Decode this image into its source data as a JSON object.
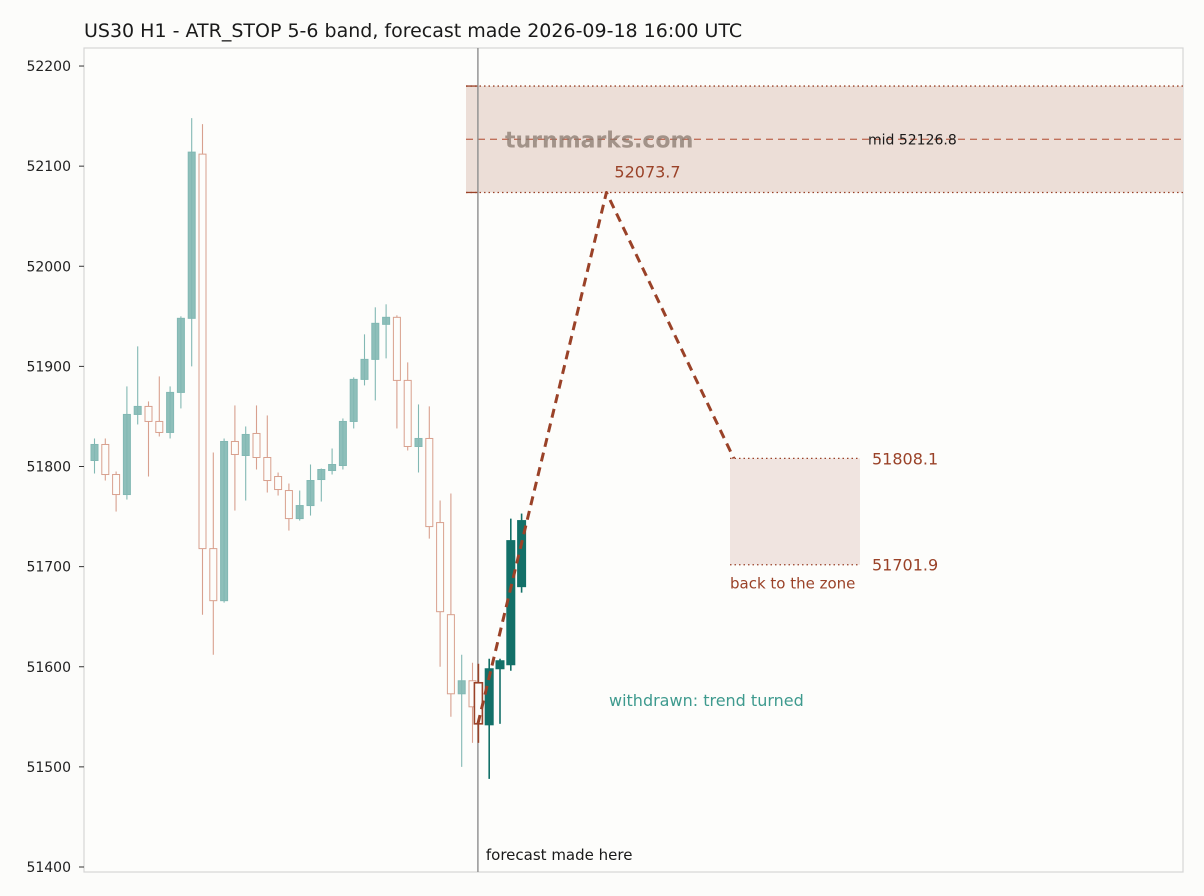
{
  "chart_data": {
    "type": "candlestick",
    "title": "US30 H1 - ATR_STOP 5-6 band, forecast made 2026-09-18 16:00 UTC",
    "xlabel": "",
    "ylabel": "",
    "ylim": [
      51395,
      52218
    ],
    "yticks": [
      "51400",
      "51500",
      "51600",
      "51700",
      "51800",
      "51900",
      "52000",
      "52100",
      "52200"
    ],
    "grid": false,
    "watermark": "turnmarks.com",
    "colors": {
      "up_history": "#82b8b3",
      "down_history": "#d8a08e",
      "up_forecast": "#137068",
      "down_forecast": "#9a4228",
      "band_fill": "#ecded7",
      "zone_fill": "#f0e4e0",
      "forecast_line": "#9a4228",
      "note": "#3e9a8e"
    },
    "history_candles": [
      {
        "o": 51806,
        "h": 51828,
        "l": 51793,
        "c": 51822
      },
      {
        "o": 51822,
        "h": 51828,
        "l": 51786,
        "c": 51792
      },
      {
        "o": 51792,
        "h": 51795,
        "l": 51755,
        "c": 51772
      },
      {
        "o": 51772,
        "h": 51880,
        "l": 51767,
        "c": 51852
      },
      {
        "o": 51852,
        "h": 51920,
        "l": 51842,
        "c": 51860
      },
      {
        "o": 51860,
        "h": 51865,
        "l": 51790,
        "c": 51845
      },
      {
        "o": 51845,
        "h": 51890,
        "l": 51830,
        "c": 51834
      },
      {
        "o": 51834,
        "h": 51880,
        "l": 51828,
        "c": 51874
      },
      {
        "o": 51874,
        "h": 51950,
        "l": 51858,
        "c": 51948
      },
      {
        "o": 51948,
        "h": 52148,
        "l": 51900,
        "c": 52114
      },
      {
        "o": 52112,
        "h": 52142,
        "l": 51652,
        "c": 51718
      },
      {
        "o": 51718,
        "h": 51814,
        "l": 51612,
        "c": 51666
      },
      {
        "o": 51666,
        "h": 51828,
        "l": 51664,
        "c": 51825
      },
      {
        "o": 51825,
        "h": 51861,
        "l": 51756,
        "c": 51812
      },
      {
        "o": 51811,
        "h": 51840,
        "l": 51766,
        "c": 51832
      },
      {
        "o": 51833,
        "h": 51861,
        "l": 51797,
        "c": 51809
      },
      {
        "o": 51809,
        "h": 51851,
        "l": 51774,
        "c": 51786
      },
      {
        "o": 51790,
        "h": 51794,
        "l": 51771,
        "c": 51777
      },
      {
        "o": 51776,
        "h": 51783,
        "l": 51736,
        "c": 51748
      },
      {
        "o": 51748,
        "h": 51776,
        "l": 51746,
        "c": 51761
      },
      {
        "o": 51761,
        "h": 51802,
        "l": 51751,
        "c": 51786
      },
      {
        "o": 51787,
        "h": 51798,
        "l": 51765,
        "c": 51797
      },
      {
        "o": 51796,
        "h": 51818,
        "l": 51792,
        "c": 51802
      },
      {
        "o": 51801,
        "h": 51848,
        "l": 51797,
        "c": 51845
      },
      {
        "o": 51845,
        "h": 51889,
        "l": 51838,
        "c": 51887
      },
      {
        "o": 51887,
        "h": 51932,
        "l": 51881,
        "c": 51907
      },
      {
        "o": 51907,
        "h": 51959,
        "l": 51866,
        "c": 51943
      },
      {
        "o": 51942,
        "h": 51962,
        "l": 51908,
        "c": 51949
      },
      {
        "o": 51949,
        "h": 51951,
        "l": 51838,
        "c": 51886
      },
      {
        "o": 51886,
        "h": 51904,
        "l": 51816,
        "c": 51820
      },
      {
        "o": 51820,
        "h": 51862,
        "l": 51794,
        "c": 51828
      },
      {
        "o": 51828,
        "h": 51860,
        "l": 51728,
        "c": 51740
      },
      {
        "o": 51744,
        "h": 51766,
        "l": 51600,
        "c": 51655
      },
      {
        "o": 51652,
        "h": 51773,
        "l": 51550,
        "c": 51573
      },
      {
        "o": 51573,
        "h": 51612,
        "l": 51500,
        "c": 51586
      },
      {
        "o": 51586,
        "h": 51604,
        "l": 51524,
        "c": 51560
      }
    ],
    "forecast_time_index": 35.5,
    "forecast_candles": [
      {
        "o": 51584,
        "h": 51603,
        "l": 51524,
        "c": 51543
      },
      {
        "o": 51542,
        "h": 51608,
        "l": 51488,
        "c": 51598
      },
      {
        "o": 51598,
        "h": 51608,
        "l": 51543,
        "c": 51606
      },
      {
        "o": 51602,
        "h": 51748,
        "l": 51596,
        "c": 51726
      },
      {
        "o": 51680,
        "h": 51753,
        "l": 51674,
        "c": 51746
      }
    ],
    "forecast_line": [
      {
        "x": 35.5,
        "y": 51543
      },
      {
        "x": 47.4,
        "y": 52073.7
      },
      {
        "x": 59.2,
        "y": 51808.1
      }
    ],
    "band": {
      "upper": 52180,
      "mid": 52126.8,
      "lower": 52073.7,
      "mid_label": "mid 52126.8"
    },
    "peak_label": "52073.7",
    "target_zone": {
      "upper": 51808.1,
      "lower": 51701.9,
      "upper_label": "51808.1",
      "lower_label": "51701.9",
      "caption": "back to the zone"
    },
    "forecast_marker_label": "forecast made here",
    "status_note": "withdrawn: trend turned"
  }
}
